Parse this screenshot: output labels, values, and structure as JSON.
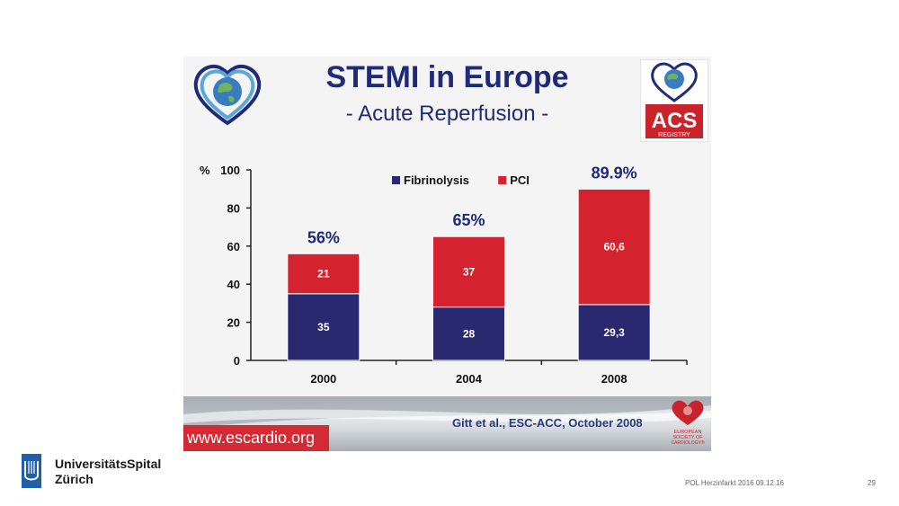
{
  "slide": {
    "title": "STEMI in Europe",
    "subtitle": "- Acute Reperfusion -",
    "website": "www.escardio.org",
    "citation": "Gitt et al., ESC-ACC, October 2008",
    "acs_logo_text": "ACS",
    "acs_logo_sub": "REGISTRY",
    "esc_logo_text": [
      "EUROPEAN",
      "SOCIETY OF",
      "CARDIOLOGY®"
    ]
  },
  "footer": {
    "institution_line1": "UniversitätsSpital",
    "institution_line2": "Zürich",
    "info": "POL Herzinfarkt 2016   09.12.16",
    "page": "29"
  },
  "colors": {
    "fibrinolysis": "#2a2970",
    "pci": "#d4232e",
    "total_label": "#1f2a78"
  },
  "chart_data": {
    "type": "bar",
    "stacked": true,
    "categories": [
      "2000",
      "2004",
      "2008"
    ],
    "series": [
      {
        "name": "Fibrinolysis",
        "values": [
          35,
          28,
          29.3
        ],
        "labels": [
          "35",
          "28",
          "29,3"
        ]
      },
      {
        "name": "PCI",
        "values": [
          21,
          37,
          60.6
        ],
        "labels": [
          "21",
          "37",
          "60,6"
        ]
      }
    ],
    "totals": [
      "56%",
      "65%",
      "89.9%"
    ],
    "ylabel": "%",
    "ylim": [
      0,
      100
    ],
    "yticks": [
      0,
      20,
      40,
      60,
      80,
      100
    ],
    "grid": false,
    "legend": "top"
  }
}
